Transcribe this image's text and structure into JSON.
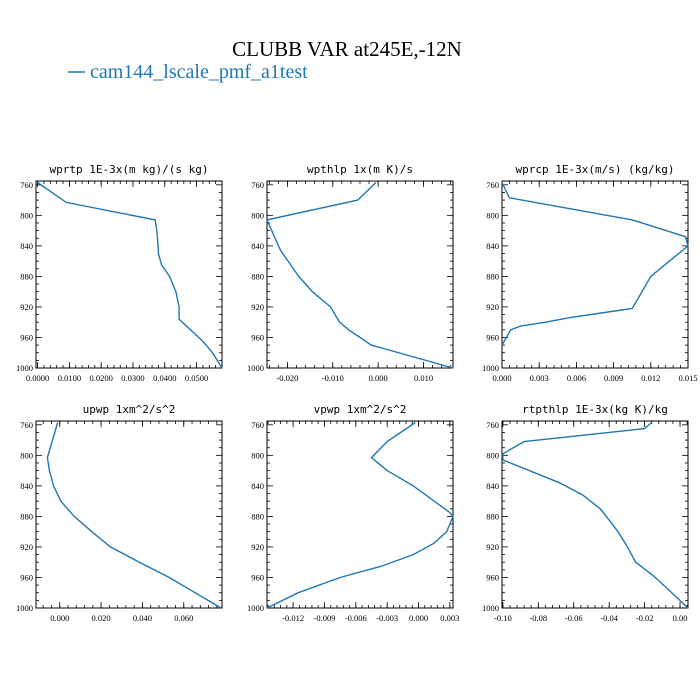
{
  "figure": {
    "title": "CLUBB VAR at245E,-12N",
    "legend": [
      {
        "label": "cam144_lscale_pmf_a1test",
        "color": "#1f77b4"
      }
    ]
  },
  "chart_data": [
    {
      "type": "line",
      "title": "wprtp  1E-3x(m kg)/(s kg)",
      "xlim": [
        -0.0005,
        0.058
      ],
      "ylim": [
        1000,
        755
      ],
      "xticks": [
        0.0,
        0.01,
        0.02,
        0.03,
        0.04,
        0.05
      ],
      "xtick_labels": [
        "0.0000",
        "0.0100",
        "0.0200",
        "0.0300",
        "0.0400",
        "0.0500"
      ],
      "yticks": [
        760,
        800,
        840,
        880,
        920,
        960,
        1000
      ],
      "series": [
        {
          "color": "#1f77b4",
          "x": [
            0.0,
            0.009,
            0.037,
            0.0375,
            0.0378,
            0.038,
            0.039,
            0.0415,
            0.0435,
            0.0445,
            0.0445,
            0.052,
            0.055,
            0.058
          ],
          "y": [
            757,
            783,
            806,
            820,
            835,
            850,
            865,
            880,
            900,
            920,
            936,
            965,
            980,
            1000
          ]
        }
      ]
    },
    {
      "type": "line",
      "title": "wpthlp  1x(m K)/s",
      "xlim": [
        -0.0245,
        0.0165
      ],
      "ylim": [
        1000,
        755
      ],
      "xticks": [
        -0.02,
        -0.01,
        0.0,
        0.01
      ],
      "xtick_labels": [
        "-0.020",
        "-0.010",
        "0.000",
        "0.010"
      ],
      "yticks": [
        760,
        800,
        840,
        880,
        920,
        960,
        1000
      ],
      "series": [
        {
          "color": "#1f77b4",
          "x": [
            -0.0005,
            -0.0045,
            -0.0245,
            -0.0215,
            -0.0175,
            -0.0145,
            -0.0105,
            -0.0095,
            -0.0085,
            -0.0065,
            -0.0015,
            0.0165
          ],
          "y": [
            757,
            780,
            806,
            846,
            880,
            900,
            920,
            930,
            940,
            950,
            970,
            1000
          ]
        }
      ]
    },
    {
      "type": "line",
      "title": "wprcp  1E-3x(m/s) (kg/kg)",
      "xlim": [
        0.0,
        0.015
      ],
      "ylim": [
        1000,
        755
      ],
      "xticks": [
        0.0,
        0.003,
        0.006,
        0.009,
        0.012,
        0.015
      ],
      "xtick_labels": [
        "0.000",
        "0.003",
        "0.006",
        "0.009",
        "0.012",
        "0.015"
      ],
      "yticks": [
        760,
        800,
        840,
        880,
        920,
        960,
        1000
      ],
      "series": [
        {
          "color": "#1f77b4",
          "x": [
            0.0,
            0.0006,
            0.0105,
            0.0148,
            0.015,
            0.0135,
            0.012,
            0.0105,
            0.008,
            0.0055,
            0.0035,
            0.0015,
            0.0007,
            0.0
          ],
          "y": [
            757,
            777,
            806,
            828,
            840,
            860,
            880,
            922,
            928,
            934,
            940,
            945,
            950,
            970
          ]
        }
      ]
    },
    {
      "type": "line",
      "title": "upwp  1xm^2/s^2",
      "xlim": [
        -0.0115,
        0.0785
      ],
      "ylim": [
        1000,
        755
      ],
      "xticks": [
        0.0,
        0.02,
        0.04,
        0.06
      ],
      "xtick_labels": [
        "0.000",
        "0.020",
        "0.040",
        "0.060"
      ],
      "yticks": [
        760,
        800,
        840,
        880,
        920,
        960,
        1000
      ],
      "series": [
        {
          "color": "#1f77b4",
          "x": [
            -0.001,
            -0.006,
            -0.005,
            -0.003,
            0.0005,
            0.007,
            0.0155,
            0.0245,
            0.0385,
            0.053,
            0.0655,
            0.078
          ],
          "y": [
            757,
            803,
            820,
            840,
            860,
            880,
            900,
            920,
            940,
            960,
            980,
            1000
          ]
        }
      ]
    },
    {
      "type": "line",
      "title": "vpwp  1xm^2/s^2",
      "xlim": [
        -0.0145,
        0.0033
      ],
      "ylim": [
        1000,
        755
      ],
      "xticks": [
        -0.012,
        -0.009,
        -0.006,
        -0.003,
        0.0,
        0.003
      ],
      "xtick_labels": [
        "-0.012",
        "-0.009",
        "-0.006",
        "-0.003",
        "0.000",
        "0.003"
      ],
      "yticks": [
        760,
        800,
        840,
        880,
        920,
        960,
        1000
      ],
      "series": [
        {
          "color": "#1f77b4",
          "x": [
            -0.0003,
            -0.003,
            -0.0045,
            -0.003,
            -0.0005,
            0.001,
            0.003,
            0.0033,
            0.0027,
            0.0015,
            -0.0005,
            -0.0035,
            -0.0075,
            -0.0115,
            -0.0145
          ],
          "y": [
            757,
            782,
            803,
            820,
            840,
            855,
            875,
            880,
            900,
            915,
            930,
            945,
            960,
            980,
            1000
          ]
        }
      ]
    },
    {
      "type": "line",
      "title": "rtpthlp  1E-3x(kg K)/kg",
      "xlim": [
        -0.1005,
        0.0045
      ],
      "ylim": [
        1000,
        755
      ],
      "xticks": [
        -0.1,
        -0.08,
        -0.06,
        -0.04,
        -0.02,
        0.0
      ],
      "xtick_labels": [
        "-0.10",
        "-0.08",
        "-0.06",
        "-0.04",
        "-0.02",
        "0.00"
      ],
      "yticks": [
        760,
        800,
        840,
        880,
        920,
        960,
        1000
      ],
      "series": [
        {
          "color": "#1f77b4",
          "x": [
            -0.016,
            -0.02,
            -0.088,
            -0.1,
            -0.1,
            -0.068,
            -0.055,
            -0.045,
            -0.04,
            -0.035,
            -0.031,
            -0.0285,
            -0.025,
            -0.015,
            -0.007,
            0.0045
          ],
          "y": [
            757,
            765,
            782,
            798,
            806,
            836,
            852,
            870,
            885,
            900,
            915,
            925,
            940,
            958,
            975,
            1000
          ]
        }
      ]
    }
  ]
}
